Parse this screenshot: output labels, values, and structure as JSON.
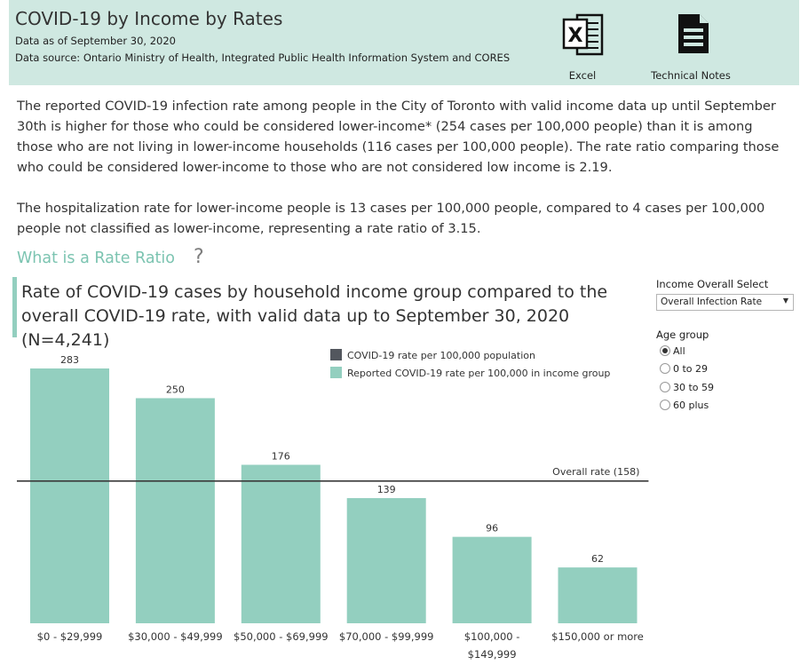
{
  "header": {
    "title": "COVID-19 by Income by Rates",
    "data_as_of": "Data as of September 30, 2020",
    "data_source": "Data source: Ontario Ministry of Health, Integrated Public Health Information System and CORES",
    "excel_label": "Excel",
    "tech_notes_label": "Technical Notes"
  },
  "text": {
    "paragraph1": "The reported COVID-19 infection rate among people in the City of Toronto with valid income data up until September 30th is higher for those who could be considered lower-income* (254 cases per 100,000 people) than it is among those who are not living in lower-income households (116 cases per 100,000 people). The rate ratio comparing those who could be considered lower-income to those who are not considered low income is 2.19.",
    "paragraph2": "The hospitalization rate for lower-income people is 13 cases per 100,000 people, compared to 4 cases per 100,000 people not classified as lower-income, representing a rate ratio of 3.15.",
    "rate_ratio_link": "What is a Rate Ratio",
    "rate_ratio_q": "?"
  },
  "controls": {
    "income_label": "Income Overall Select",
    "income_value": "Overall Infection Rate",
    "age_label": "Age group",
    "age_options": [
      "All",
      "0 to 29",
      "30 to 59",
      "60 plus"
    ],
    "age_selected": 0
  },
  "colors": {
    "bar": "#93cfbf",
    "overall_line": "#3a3a3a",
    "legend_dark": "#53575e",
    "title_accent": "#7cc4b1"
  },
  "chart_data": {
    "type": "bar",
    "title": "Rate of COVID-19 cases by household income group compared to the overall COVID-19 rate, with valid data up to September 30, 2020 (N=4,241)",
    "categories": [
      [
        "$0 - $29,999"
      ],
      [
        "$30,000 - $49,999"
      ],
      [
        "$50,000 - $69,999"
      ],
      [
        "$70,000 - $99,999"
      ],
      [
        "$100,000 -",
        "$149,999"
      ],
      [
        "$150,000 or more"
      ]
    ],
    "series": [
      {
        "name": "Reported COVID-19 rate per 100,000 in income group",
        "values": [
          283,
          250,
          176,
          139,
          96,
          62
        ]
      }
    ],
    "reference_line": {
      "name": "COVID-19 rate per 100,000 population",
      "value": 158,
      "label": "Overall rate (158)"
    },
    "legend": [
      "COVID-19 rate per 100,000 population",
      "Reported COVID-19 rate per 100,000 in income group"
    ],
    "legend_position": "top-right",
    "ylim": [
      0,
      300
    ],
    "grid": false,
    "xlabel": "",
    "ylabel": ""
  }
}
